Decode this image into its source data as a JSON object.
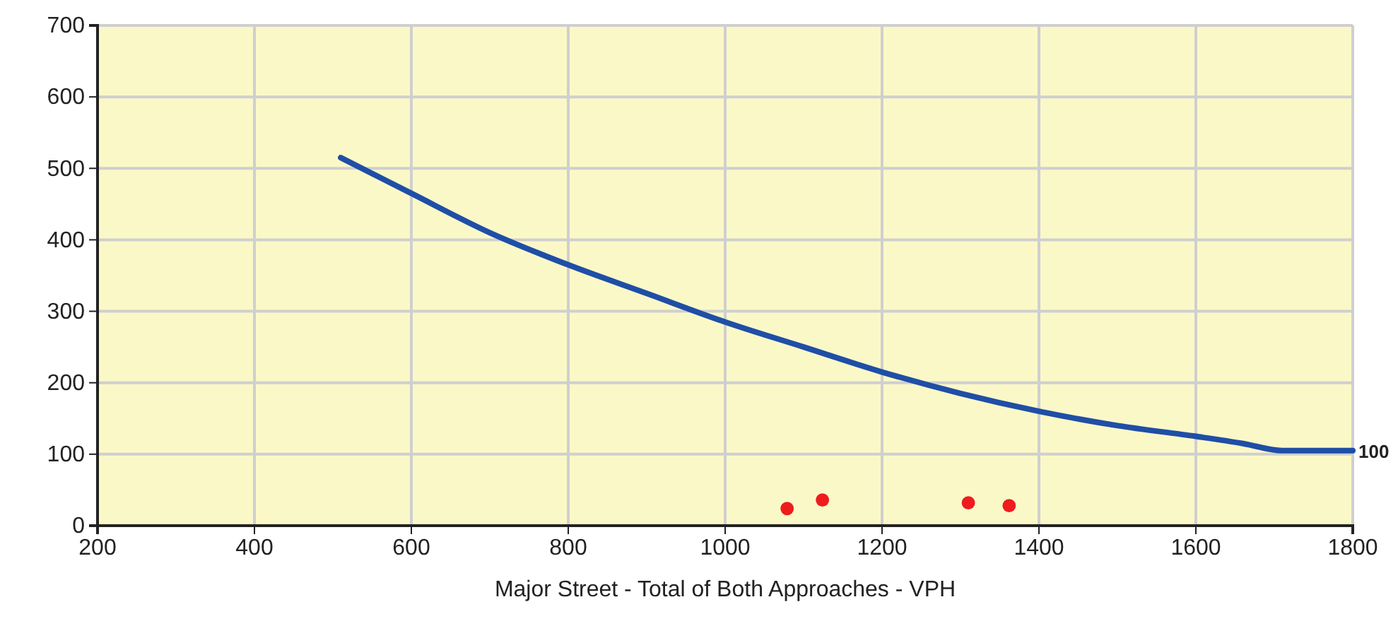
{
  "chart_data": {
    "type": "line",
    "xlabel": "Major Street - Total of Both Approaches - VPH",
    "xlim": [
      200,
      1800
    ],
    "ylim": [
      0,
      700
    ],
    "xticks": [
      200,
      400,
      600,
      800,
      1000,
      1200,
      1400,
      1600,
      1800
    ],
    "yticks": [
      0,
      100,
      200,
      300,
      400,
      500,
      600,
      700
    ],
    "grid": true,
    "marker": "none",
    "line_style": "solid",
    "series": [
      {
        "color": "#1f4ea6",
        "x": [
          510,
          600,
          700,
          800,
          900,
          1000,
          1100,
          1200,
          1300,
          1400,
          1500,
          1600,
          1660,
          1710,
          1800
        ],
        "values": [
          515,
          465,
          410,
          365,
          325,
          285,
          250,
          215,
          185,
          160,
          140,
          125,
          115,
          105,
          105
        ]
      },
      {
        "type": "scatter",
        "color": "#ee1c1c",
        "marker": "circle",
        "x": [
          1079,
          1124,
          1310,
          1362
        ],
        "values": [
          24,
          36,
          32,
          28
        ]
      }
    ],
    "annotations": [
      {
        "text": "100",
        "x": 1800,
        "y": 105
      }
    ]
  }
}
